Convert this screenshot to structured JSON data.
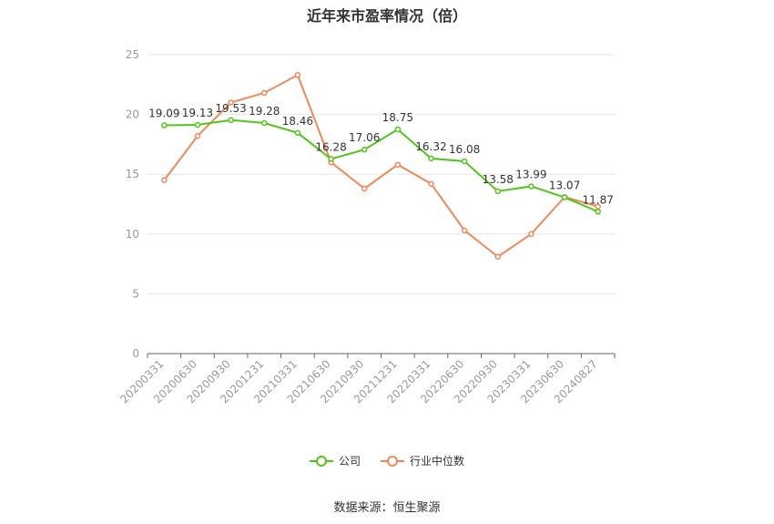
{
  "chart_data": {
    "type": "line",
    "title": "近年来市盈率情况（倍）",
    "categories": [
      "20200331",
      "20200630",
      "20200930",
      "20201231",
      "20210331",
      "20210630",
      "20210930",
      "20211231",
      "20220331",
      "20220630",
      "20220930",
      "20230331",
      "20230630",
      "20240827"
    ],
    "ylim": [
      0,
      25
    ],
    "yticks": [
      0,
      5,
      10,
      15,
      20,
      25
    ],
    "grid": true,
    "legend_position": "bottom",
    "series": [
      {
        "name": "公司",
        "color": "#52c41a",
        "values": [
          19.09,
          19.13,
          19.53,
          19.28,
          18.46,
          16.28,
          17.06,
          18.75,
          16.32,
          16.08,
          13.58,
          13.99,
          13.07,
          11.87
        ],
        "labels": [
          "19.09",
          "19.13",
          "19.53",
          "19.28",
          "18.46",
          "16.28",
          "17.06",
          "18.75",
          "16.32",
          "16.08",
          "13.58",
          "13.99",
          "13.07",
          "11.87"
        ]
      },
      {
        "name": "行业中位数",
        "color": "#f0885a",
        "values": [
          14.5,
          18.2,
          21.0,
          21.8,
          23.3,
          16.0,
          13.8,
          15.8,
          14.2,
          10.3,
          8.1,
          10.0,
          13.1,
          12.3
        ]
      }
    ]
  },
  "source": "数据来源：恒生聚源"
}
